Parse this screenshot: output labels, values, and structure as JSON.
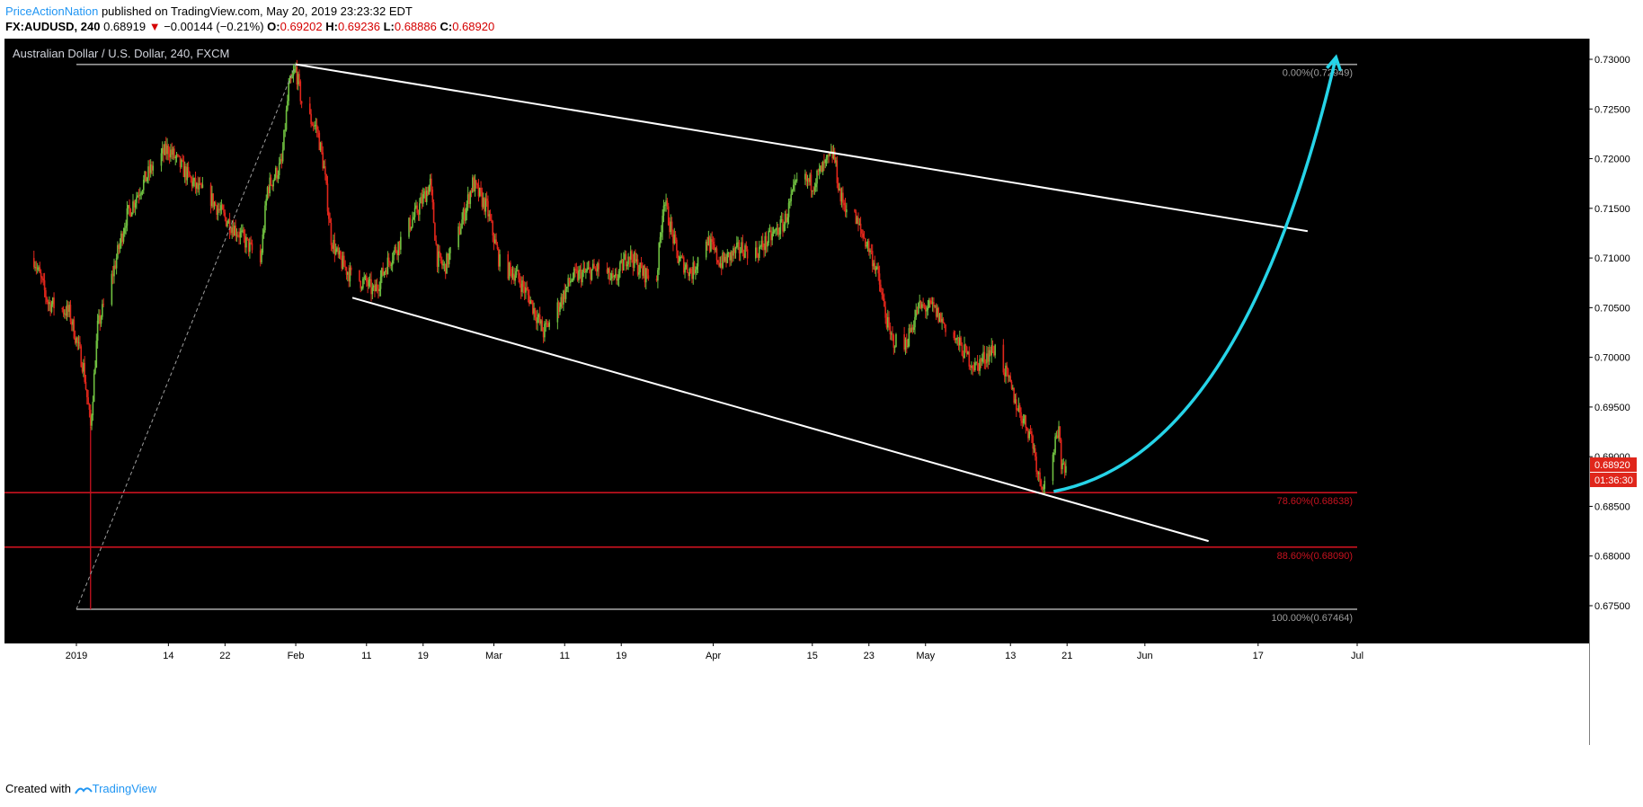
{
  "header": {
    "author": "PriceActionNation",
    "published_text": "published on TradingView.com, May 20, 2019 23:23:32 EDT",
    "symbol": "FX:AUDUSD, 240",
    "last": "0.68919",
    "change_arrow": "▼",
    "change": "−0.00144 (−0.21%)",
    "o_label": "O:",
    "o_value": "0.69202",
    "h_label": "H:",
    "h_value": "0.69236",
    "l_label": "L:",
    "l_value": "0.68886",
    "c_label": "C:",
    "c_value": "0.68920"
  },
  "chart_title": "Australian Dollar / U.S. Dollar, 240, FXCM",
  "footer": {
    "created_with": "Created with",
    "brand": "TradingView"
  },
  "colors": {
    "background": "#000000",
    "up": "#6fbf40",
    "down": "#e0261b",
    "trendline": "#ffffff",
    "fib_red": "#c8121f",
    "fib_gray": "#9e9e9e",
    "arrow": "#26d4e8"
  },
  "chart_data": {
    "type": "candlestick",
    "title": "Australian Dollar / U.S. Dollar, 240, FXCM",
    "ylim": [
      0.6725,
      0.7325
    ],
    "y_ticks": [
      "0.73000",
      "0.72500",
      "0.72000",
      "0.71500",
      "0.71000",
      "0.70500",
      "0.70000",
      "0.69500",
      "0.69000",
      "0.68500",
      "0.68000",
      "0.67500"
    ],
    "x_range": [
      "2018-12-26",
      "2019-07-01"
    ],
    "x_ticks": [
      {
        "date": "2019-01-01",
        "label": "2019"
      },
      {
        "date": "2019-01-14",
        "label": "14"
      },
      {
        "date": "2019-01-22",
        "label": "22"
      },
      {
        "date": "2019-02-01",
        "label": "Feb"
      },
      {
        "date": "2019-02-11",
        "label": "11"
      },
      {
        "date": "2019-02-19",
        "label": "19"
      },
      {
        "date": "2019-03-01",
        "label": "Mar"
      },
      {
        "date": "2019-03-11",
        "label": "11"
      },
      {
        "date": "2019-03-19",
        "label": "19"
      },
      {
        "date": "2019-04-01",
        "label": "Apr"
      },
      {
        "date": "2019-04-15",
        "label": "15"
      },
      {
        "date": "2019-04-23",
        "label": "23"
      },
      {
        "date": "2019-05-01",
        "label": "May"
      },
      {
        "date": "2019-05-13",
        "label": "13"
      },
      {
        "date": "2019-05-21",
        "label": "21"
      },
      {
        "date": "2019-06-01",
        "label": "Jun"
      },
      {
        "date": "2019-06-17",
        "label": "17"
      },
      {
        "date": "2019-07-01",
        "label": "Jul"
      }
    ],
    "price_path": [
      [
        "2018-12-26",
        0.71
      ],
      [
        "2018-12-28",
        0.7055
      ],
      [
        "2018-12-31",
        0.7045
      ],
      [
        "2019-01-02",
        0.699
      ],
      [
        "2019-01-03",
        0.693
      ],
      [
        "2019-01-04",
        0.703
      ],
      [
        "2019-01-06",
        0.708
      ],
      [
        "2019-01-08",
        0.714
      ],
      [
        "2019-01-10",
        0.717
      ],
      [
        "2019-01-12",
        0.7195
      ],
      [
        "2019-01-14",
        0.721
      ],
      [
        "2019-01-16",
        0.719
      ],
      [
        "2019-01-18",
        0.717
      ],
      [
        "2019-01-20",
        0.716
      ],
      [
        "2019-01-22",
        0.714
      ],
      [
        "2019-01-24",
        0.7125
      ],
      [
        "2019-01-26",
        0.7105
      ],
      [
        "2019-01-27",
        0.7095
      ],
      [
        "2019-01-28",
        0.717
      ],
      [
        "2019-01-30",
        0.7195
      ],
      [
        "2019-01-31",
        0.727
      ],
      [
        "2019-02-01",
        0.729
      ],
      [
        "2019-02-02",
        0.725
      ],
      [
        "2019-02-04",
        0.723
      ],
      [
        "2019-02-05",
        0.719
      ],
      [
        "2019-02-06",
        0.712
      ],
      [
        "2019-02-07",
        0.71
      ],
      [
        "2019-02-09",
        0.708
      ],
      [
        "2019-02-11",
        0.7075
      ],
      [
        "2019-02-12",
        0.7065
      ],
      [
        "2019-02-14",
        0.7095
      ],
      [
        "2019-02-16",
        0.712
      ],
      [
        "2019-02-18",
        0.7145
      ],
      [
        "2019-02-20",
        0.7175
      ],
      [
        "2019-02-21",
        0.71
      ],
      [
        "2019-02-22",
        0.709
      ],
      [
        "2019-02-24",
        0.7125
      ],
      [
        "2019-02-26",
        0.7175
      ],
      [
        "2019-02-28",
        0.715
      ],
      [
        "2019-03-02",
        0.709
      ],
      [
        "2019-03-04",
        0.7085
      ],
      [
        "2019-03-06",
        0.706
      ],
      [
        "2019-03-08",
        0.7025
      ],
      [
        "2019-03-10",
        0.705
      ],
      [
        "2019-03-12",
        0.708
      ],
      [
        "2019-03-14",
        0.7085
      ],
      [
        "2019-03-16",
        0.709
      ],
      [
        "2019-03-18",
        0.7075
      ],
      [
        "2019-03-20",
        0.7105
      ],
      [
        "2019-03-22",
        0.7085
      ],
      [
        "2019-03-24",
        0.708
      ],
      [
        "2019-03-25",
        0.716
      ],
      [
        "2019-03-27",
        0.71
      ],
      [
        "2019-03-29",
        0.7085
      ],
      [
        "2019-03-31",
        0.712
      ],
      [
        "2019-04-02",
        0.7095
      ],
      [
        "2019-04-03",
        0.71
      ],
      [
        "2019-04-05",
        0.711
      ],
      [
        "2019-04-07",
        0.7105
      ],
      [
        "2019-04-09",
        0.712
      ],
      [
        "2019-04-11",
        0.7135
      ],
      [
        "2019-04-13",
        0.718
      ],
      [
        "2019-04-15",
        0.7175
      ],
      [
        "2019-04-17",
        0.7195
      ],
      [
        "2019-04-18",
        0.7205
      ],
      [
        "2019-04-19",
        0.716
      ],
      [
        "2019-04-21",
        0.714
      ],
      [
        "2019-04-23",
        0.711
      ],
      [
        "2019-04-24",
        0.709
      ],
      [
        "2019-04-26",
        0.702
      ],
      [
        "2019-04-28",
        0.701
      ],
      [
        "2019-04-30",
        0.705
      ],
      [
        "2019-05-02",
        0.705
      ],
      [
        "2019-05-04",
        0.703
      ],
      [
        "2019-05-06",
        0.701
      ],
      [
        "2019-05-08",
        0.699
      ],
      [
        "2019-05-10",
        0.7005
      ],
      [
        "2019-05-11",
        0.701
      ],
      [
        "2019-05-13",
        0.697
      ],
      [
        "2019-05-14",
        0.695
      ],
      [
        "2019-05-16",
        0.692
      ],
      [
        "2019-05-17",
        0.688
      ],
      [
        "2019-05-18",
        0.687
      ],
      [
        "2019-05-19",
        0.6905
      ],
      [
        "2019-05-20",
        0.6925
      ],
      [
        "2019-05-20",
        0.6892
      ]
    ],
    "last_price": "0.68920",
    "countdown": "01:36:30",
    "fib_levels": [
      {
        "ratio": "0.00%",
        "price": 0.72949,
        "label": "0.00%(0.72949)"
      },
      {
        "ratio": "78.60%",
        "price": 0.68638,
        "label": "78.60%(0.68638)"
      },
      {
        "ratio": "88.60%",
        "price": 0.6809,
        "label": "88.60%(0.68090)"
      },
      {
        "ratio": "100.00%",
        "price": 0.67464,
        "label": "100.00%(0.67464)"
      }
    ],
    "trendlines": [
      {
        "name": "upper-channel",
        "from": [
          "2019-02-01",
          0.72949
        ],
        "to": [
          "2019-06-24",
          0.7127
        ]
      },
      {
        "name": "lower-channel",
        "from": [
          "2019-02-09",
          0.706
        ],
        "to": [
          "2019-06-10",
          0.6815
        ]
      },
      {
        "name": "fib-baseline",
        "from": [
          "2019-01-01",
          0.67464
        ],
        "to": [
          "2019-02-01",
          0.72949
        ]
      }
    ],
    "projection": {
      "from": [
        "2019-05-20",
        0.6865
      ],
      "to": [
        "2019-06-28",
        0.7302
      ]
    }
  }
}
